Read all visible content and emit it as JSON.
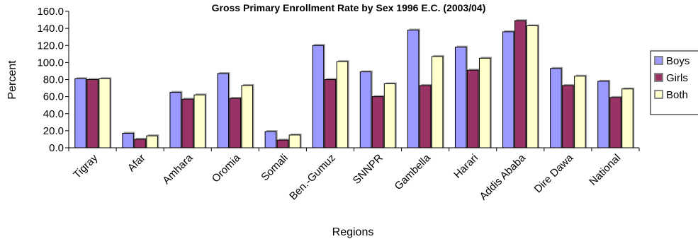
{
  "chart_data": {
    "type": "bar",
    "title": "Gross Primary Enrollment Rate by Sex 1996 E.C. (2003/04)",
    "xlabel": "Regions",
    "ylabel": "Percent",
    "ylim": [
      0,
      160
    ],
    "ytick_step": 20,
    "ytick_labels": [
      "0.0",
      "20.0",
      "40.0",
      "60.0",
      "80.0",
      "100.0",
      "120.0",
      "140.0",
      "160.0"
    ],
    "grid": false,
    "legend_position": "right",
    "categories": [
      "Tigray",
      "Afar",
      "Amhara",
      "Oromia",
      "Somali",
      "Ben.-Gumuz",
      "SNNPR",
      "Gambella",
      "Harari",
      "Addis Ababa",
      "Dire Dawa",
      "National"
    ],
    "series": [
      {
        "name": "Boys",
        "color": "#9999FF",
        "values": [
          81,
          17,
          65,
          87,
          19,
          120,
          89,
          138,
          118,
          136,
          93,
          78
        ]
      },
      {
        "name": "Girls",
        "color": "#993366",
        "values": [
          80,
          10,
          57,
          58,
          9,
          80,
          60,
          73,
          91,
          149,
          73,
          59
        ]
      },
      {
        "name": "Both",
        "color": "#FFFFCC",
        "values": [
          81,
          14,
          62,
          73,
          15,
          101,
          75,
          107,
          105,
          143,
          84,
          69
        ]
      }
    ]
  }
}
